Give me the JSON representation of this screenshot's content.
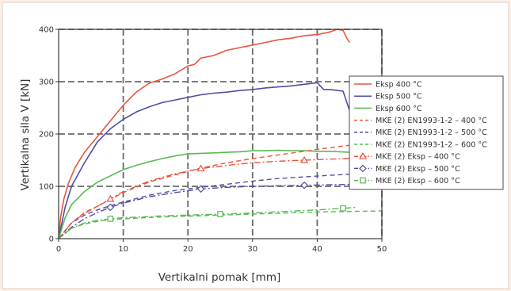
{
  "chart_data": {
    "type": "line",
    "title": "",
    "xlabel": "Vertikalni pomak [mm]",
    "ylabel": "Vertikalna sila V [kN]",
    "xlim": [
      0,
      50
    ],
    "ylim": [
      0,
      400
    ],
    "xticks": [
      0,
      10,
      20,
      30,
      40,
      50
    ],
    "yticks": [
      0,
      100,
      200,
      300,
      400
    ],
    "grid": true,
    "legend_position": "right",
    "series": [
      {
        "name": "Eksp 400 °C",
        "color": "#e8553f",
        "dash": "solid",
        "marker": "none",
        "x": [
          0,
          0.3,
          0.8,
          1.5,
          2.5,
          4,
          6,
          8,
          10,
          12,
          14,
          16,
          18,
          20,
          21,
          22,
          24,
          26,
          28,
          30,
          32,
          34,
          36,
          38,
          40,
          42,
          43,
          44,
          44.5,
          45
        ],
        "y": [
          0,
          40,
          75,
          105,
          135,
          165,
          195,
          225,
          255,
          280,
          297,
          305,
          315,
          330,
          333,
          345,
          350,
          360,
          365,
          370,
          375,
          380,
          383,
          388,
          390,
          395,
          400,
          398,
          385,
          375
        ]
      },
      {
        "name": "Eksp 500 °C",
        "color": "#4f4fa3",
        "dash": "solid",
        "marker": "none",
        "x": [
          0,
          1,
          2,
          4,
          6,
          8,
          10,
          12,
          14,
          16,
          18,
          20,
          22,
          24,
          26,
          28,
          30,
          32,
          34,
          36,
          38,
          40,
          41,
          42,
          44,
          45
        ],
        "y": [
          0,
          60,
          100,
          145,
          185,
          210,
          228,
          242,
          252,
          260,
          265,
          270,
          275,
          278,
          280,
          283,
          285,
          288,
          290,
          292,
          295,
          298,
          285,
          285,
          282,
          245
        ]
      },
      {
        "name": "Eksp 600 °C",
        "color": "#59b952",
        "dash": "solid",
        "marker": "none",
        "x": [
          0,
          1,
          2,
          4,
          6,
          8,
          10,
          12,
          14,
          16,
          18,
          20,
          22,
          24,
          26,
          28,
          30,
          32,
          34,
          36,
          38,
          40,
          42,
          45
        ],
        "y": [
          0,
          40,
          65,
          90,
          108,
          120,
          132,
          140,
          147,
          153,
          158,
          162,
          163,
          164,
          165,
          166,
          168,
          168,
          169,
          168,
          168,
          167,
          167,
          165
        ]
      },
      {
        "name": "MKE (2) EN1993-1-2 – 400 °C",
        "color": "#e8553f",
        "dash": "dash",
        "marker": "none",
        "x": [
          0,
          2,
          4,
          6,
          8,
          10,
          14,
          18,
          22,
          26,
          30,
          34,
          38,
          42,
          46
        ],
        "y": [
          0,
          30,
          50,
          62,
          75,
          88,
          108,
          122,
          135,
          145,
          153,
          160,
          167,
          174,
          180
        ]
      },
      {
        "name": "MKE (2) EN1993-1-2 – 500 °C",
        "color": "#4f4fa3",
        "dash": "dash",
        "marker": "none",
        "x": [
          0,
          2,
          4,
          6,
          8,
          10,
          14,
          18,
          22,
          26,
          30,
          34,
          38,
          42,
          46
        ],
        "y": [
          0,
          30,
          45,
          55,
          63,
          70,
          83,
          92,
          98,
          104,
          110,
          115,
          118,
          121,
          124
        ]
      },
      {
        "name": "MKE (2) EN1993-1-2 – 600 °C",
        "color": "#59b952",
        "dash": "dash",
        "marker": "none",
        "x": [
          0,
          2,
          4,
          6,
          8,
          10,
          15,
          20,
          25,
          30,
          35,
          40,
          45,
          50
        ],
        "y": [
          0,
          20,
          28,
          33,
          36,
          38,
          41,
          43,
          45,
          47,
          49,
          51,
          52,
          53
        ]
      },
      {
        "name": "MKE (2) Eksp – 400 °C",
        "color": "#e8553f",
        "dash": "dashdot",
        "marker": "triangle",
        "x": [
          0,
          2,
          4,
          6,
          8,
          10,
          14,
          18,
          22,
          26,
          30,
          34,
          38,
          42,
          46
        ],
        "y": [
          0,
          30,
          48,
          62,
          76,
          90,
          110,
          124,
          134,
          140,
          145,
          148,
          150,
          152,
          154
        ]
      },
      {
        "name": "MKE (2) Eksp – 500 °C",
        "color": "#4f4fa3",
        "dash": "dashdot",
        "marker": "diamond",
        "x": [
          0,
          2,
          4,
          6,
          8,
          10,
          14,
          18,
          22,
          26,
          30,
          34,
          38,
          42,
          46
        ],
        "y": [
          0,
          22,
          38,
          50,
          60,
          68,
          80,
          88,
          95,
          98,
          100,
          101,
          102,
          103,
          104
        ]
      },
      {
        "name": "MKE (2) Eksp – 600 °C",
        "color": "#59b952",
        "dash": "dashdot",
        "marker": "square",
        "x": [
          0,
          2,
          4,
          6,
          8,
          10,
          15,
          20,
          25,
          30,
          35,
          40,
          44,
          46
        ],
        "y": [
          0,
          20,
          30,
          35,
          38,
          40,
          43,
          45,
          47,
          49,
          52,
          55,
          58,
          60
        ]
      }
    ]
  }
}
